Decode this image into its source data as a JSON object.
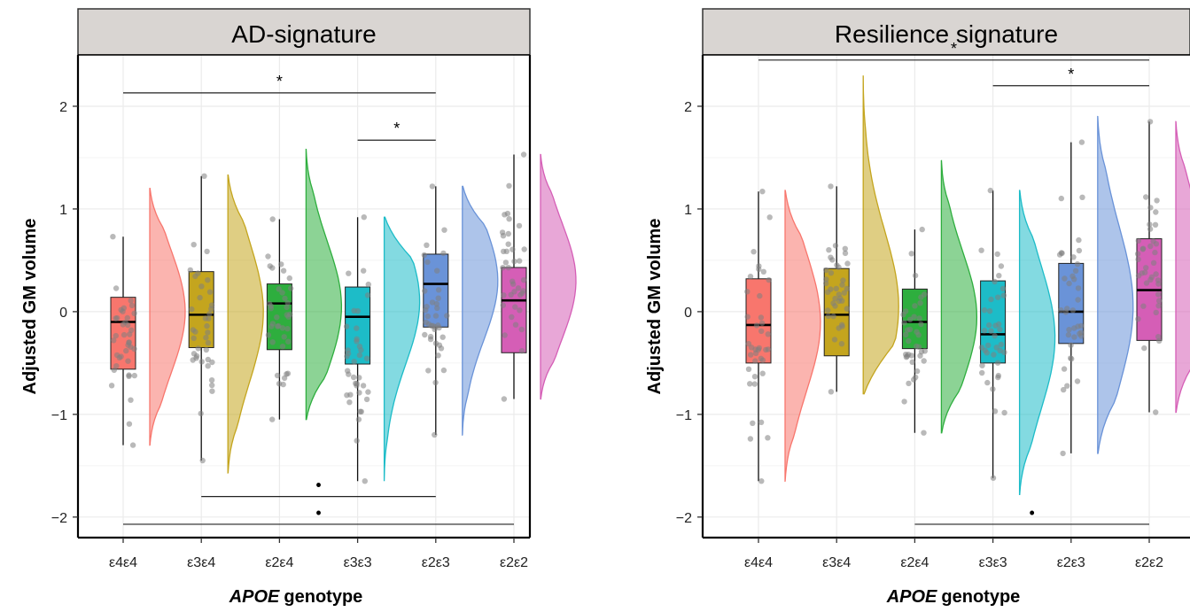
{
  "figure": {
    "xlabel_italic": "APOE",
    "xlabel_rest": "genotype",
    "ylabel": "Adjusted GM volume"
  },
  "chart_data": [
    {
      "type": "raincloud",
      "title": "AD-signature",
      "categories": [
        "ε4ε4",
        "ε3ε4",
        "ε2ε4",
        "ε3ε3",
        "ε2ε3",
        "ε2ε2"
      ],
      "colors": [
        "#F8766D",
        "#C4A51E",
        "#2EAE3E",
        "#1DBCC8",
        "#6A93D8",
        "#D55EB6"
      ],
      "ylim": [
        -2.2,
        2.5
      ],
      "yticks": [
        -2,
        -1,
        0,
        1,
        2
      ],
      "ytick_labels": [
        "−2",
        "−1",
        "0",
        "1",
        "2"
      ],
      "grid": true,
      "boxes": [
        {
          "q1": -0.56,
          "median": -0.1,
          "q3": 0.14,
          "whisker_low": -1.3,
          "whisker_high": 0.73,
          "violin_min": -1.3,
          "violin_max": 1.2,
          "mode": 0.0
        },
        {
          "q1": -0.35,
          "median": -0.03,
          "q3": 0.39,
          "whisker_low": -1.45,
          "whisker_high": 1.32,
          "violin_min": -1.57,
          "violin_max": 1.33,
          "mode": 0.0
        },
        {
          "q1": -0.37,
          "median": 0.08,
          "q3": 0.27,
          "whisker_low": -1.05,
          "whisker_high": 0.9,
          "violin_min": -1.05,
          "violin_max": 1.58,
          "mode": 0.05
        },
        {
          "q1": -0.51,
          "median": -0.05,
          "q3": 0.24,
          "whisker_low": -1.65,
          "whisker_high": 0.92,
          "violin_min": -1.65,
          "violin_max": 0.92,
          "mode": 0.1
        },
        {
          "q1": -0.15,
          "median": 0.27,
          "q3": 0.56,
          "whisker_low": -1.2,
          "whisker_high": 1.22,
          "violin_min": -1.2,
          "violin_max": 1.22,
          "mode": 0.3
        },
        {
          "q1": -0.4,
          "median": 0.11,
          "q3": 0.43,
          "whisker_low": -0.85,
          "whisker_high": 1.53,
          "violin_min": -0.85,
          "violin_max": 1.53,
          "mode": 0.3
        }
      ],
      "significance": [
        {
          "from": 0,
          "to": 4,
          "y": 2.13,
          "label": "*"
        },
        {
          "from": 3,
          "to": 4,
          "y": 1.67,
          "label": "*"
        },
        {
          "from": 1,
          "to": 4,
          "y": -1.8,
          "label": "•"
        },
        {
          "from": 0,
          "to": 5,
          "y": -2.07,
          "label": "•"
        }
      ]
    },
    {
      "type": "raincloud",
      "title": "Resilience signature",
      "categories": [
        "ε4ε4",
        "ε3ε4",
        "ε2ε4",
        "ε3ε3",
        "ε2ε3",
        "ε2ε2"
      ],
      "colors": [
        "#F8766D",
        "#C4A51E",
        "#2EAE3E",
        "#1DBCC8",
        "#6A93D8",
        "#D55EB6"
      ],
      "ylim": [
        -2.2,
        2.5
      ],
      "yticks": [
        -2,
        -1,
        0,
        1,
        2
      ],
      "ytick_labels": [
        "−2",
        "−1",
        "0",
        "1",
        "2"
      ],
      "grid": true,
      "boxes": [
        {
          "q1": -0.5,
          "median": -0.13,
          "q3": 0.32,
          "whisker_low": -1.65,
          "whisker_high": 1.17,
          "violin_min": -1.65,
          "violin_max": 1.18,
          "mode": -0.1
        },
        {
          "q1": -0.43,
          "median": -0.03,
          "q3": 0.42,
          "whisker_low": -0.78,
          "whisker_high": 1.22,
          "violin_min": -0.8,
          "violin_max": 2.3,
          "mode": 0.05
        },
        {
          "q1": -0.36,
          "median": -0.1,
          "q3": 0.22,
          "whisker_low": -1.18,
          "whisker_high": 0.8,
          "violin_min": -1.18,
          "violin_max": 1.47,
          "mode": -0.05
        },
        {
          "q1": -0.5,
          "median": -0.22,
          "q3": 0.3,
          "whisker_low": -1.62,
          "whisker_high": 1.18,
          "violin_min": -1.78,
          "violin_max": 1.18,
          "mode": -0.25
        },
        {
          "q1": -0.31,
          "median": 0.0,
          "q3": 0.47,
          "whisker_low": -1.38,
          "whisker_high": 1.65,
          "violin_min": -1.38,
          "violin_max": 1.9,
          "mode": 0.05
        },
        {
          "q1": -0.28,
          "median": 0.21,
          "q3": 0.71,
          "whisker_low": -0.98,
          "whisker_high": 1.85,
          "violin_min": -0.98,
          "violin_max": 1.85,
          "mode": 0.3
        }
      ],
      "significance": [
        {
          "from": 0,
          "to": 5,
          "y": 2.45,
          "label": "*"
        },
        {
          "from": 3,
          "to": 5,
          "y": 2.2,
          "label": "*"
        },
        {
          "from": 2,
          "to": 5,
          "y": -2.07,
          "label": "•"
        }
      ]
    }
  ]
}
